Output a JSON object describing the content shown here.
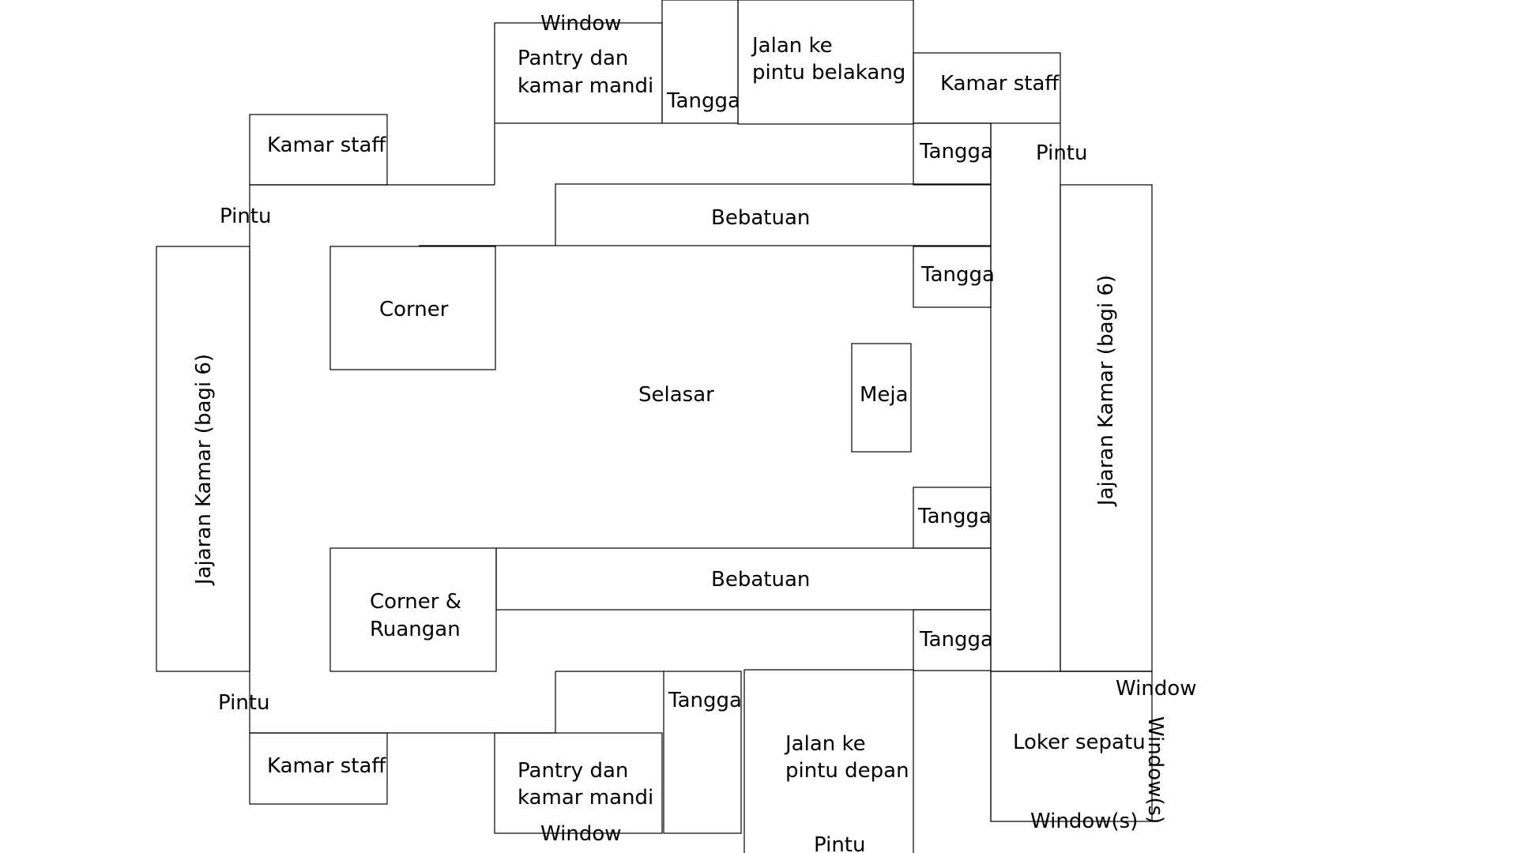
{
  "floor_plan": {
    "labels": {
      "window": "Window",
      "windows": "Window(s)",
      "pantry_line1": "Pantry dan",
      "pantry_line2": "kamar mandi",
      "tangga": "Tangga",
      "jalan_belakang_line1": "Jalan ke",
      "jalan_belakang_line2": "pintu belakang",
      "jalan_depan_line1": "Jalan ke",
      "jalan_depan_line2": "pintu depan",
      "kamar_staff": "Kamar staff",
      "pintu": "Pintu",
      "bebatuan": "Bebatuan",
      "corner": "Corner",
      "corner_ruangan_line1": "Corner &",
      "corner_ruangan_line2": "Ruangan",
      "selasar": "Selasar",
      "meja": "Meja",
      "jajaran_kamar": "Jajaran Kamar (bagi 6)",
      "loker_sepatu": "Loker sepatu"
    }
  }
}
